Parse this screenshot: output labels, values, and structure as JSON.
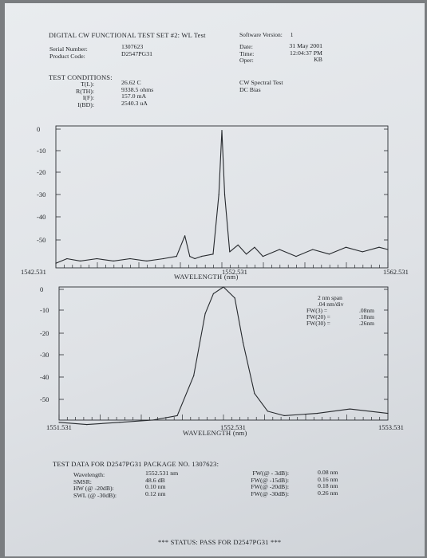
{
  "header": {
    "title": "DIGITAL CW FUNCTIONAL TEST SET #2:",
    "title_suffix": "WL Test",
    "software_label": "Software Version:",
    "software_value": "1",
    "serial_label": "Serial Number:",
    "serial_value": "1307623",
    "product_label": "Product Code:",
    "product_value": "D2547PG31",
    "date_label": "Date:",
    "date_value": "31 May 2001",
    "time_label": "Time:",
    "time_value": "12:04:37 PM",
    "oper_label": "Oper:",
    "oper_value": "KB"
  },
  "conditions": {
    "title": "TEST CONDITIONS:",
    "labels": [
      "T(L):",
      "R(TH):",
      "I(F):",
      "I(BD):"
    ],
    "values": [
      "26.62 C",
      "9338.5 ohms",
      "157.0 mA",
      "2540.3 uA"
    ],
    "mode_1": "CW Spectral Test",
    "mode_2": "DC Bias"
  },
  "chart_data": [
    {
      "type": "line",
      "xlabel": "WAVELENGTH (nm)",
      "x_ticks": [
        "1542.531",
        "1552.531",
        "1562.531"
      ],
      "xlim": [
        1542.531,
        1562.531
      ],
      "y_ticks": [
        "0",
        "-10",
        "-20",
        "-30",
        "-40",
        "-50"
      ],
      "ylim": [
        -62,
        0
      ],
      "series": [
        {
          "x": [
            1542.531,
            1543.2,
            1544.0,
            1545.0,
            1546.0,
            1547.0,
            1548.0,
            1549.0,
            1549.8,
            1550.3,
            1550.6,
            1550.9,
            1551.3,
            1552.0,
            1552.35,
            1552.531,
            1552.7,
            1553.0,
            1553.5,
            1554.0,
            1554.5,
            1555.0,
            1556.0,
            1557.0,
            1558.0,
            1559.0,
            1560.0,
            1561.0,
            1562.0,
            1562.531
          ],
          "y": [
            -60,
            -58,
            -59,
            -58,
            -59,
            -58,
            -59,
            -58,
            -57,
            -48,
            -57,
            -58,
            -57,
            -56,
            -30,
            -2,
            -30,
            -55,
            -52,
            -56,
            -53,
            -57,
            -54,
            -57,
            -54,
            -56,
            -53,
            -55,
            -53,
            -54
          ]
        }
      ]
    },
    {
      "type": "line",
      "xlabel": "WAVELENGTH (nm)",
      "x_ticks": [
        "1551.531",
        "1552.531",
        "1553.531"
      ],
      "xlim": [
        1551.531,
        1553.531
      ],
      "y_ticks": [
        "0",
        "-10",
        "-20",
        "-30",
        "-40",
        "-50"
      ],
      "ylim": [
        -60,
        0
      ],
      "annotations": [
        "2 nm span",
        ".04 nm/div"
      ],
      "fw_labels": [
        "FW(3) =",
        "FW(20) =",
        "FW(30) ="
      ],
      "fw_values": [
        ".08nm",
        ".18nm",
        ".26nm"
      ],
      "series": [
        {
          "x": [
            1551.531,
            1551.7,
            1551.9,
            1552.1,
            1552.25,
            1552.35,
            1552.42,
            1552.47,
            1552.531,
            1552.6,
            1552.65,
            1552.72,
            1552.8,
            1552.9,
            1553.1,
            1553.3,
            1553.531
          ],
          "y": [
            -61,
            -62,
            -61,
            -60,
            -58,
            -40,
            -12,
            -3,
            0,
            -5,
            -25,
            -48,
            -56,
            -58,
            -57,
            -55,
            -57
          ]
        }
      ]
    }
  ],
  "test_data": {
    "title": "TEST DATA FOR D2547PG31 PACKAGE NO. 1307623:",
    "labels_1": [
      "Wavelength:",
      "SMSR:",
      "HW (@ -20dB):",
      "SWL (@ -30dB):"
    ],
    "values_1": [
      "1552.531 nm",
      "48.6 dB",
      "0.10 nm",
      "0.12 nm"
    ],
    "labels_2": [
      "FW(@ - 3dB):",
      "FW(@ -15dB):",
      "FW(@ -20dB):",
      "FW(@ -30dB):"
    ],
    "values_2": [
      "0.08 nm",
      "0.16 nm",
      "0.18 nm",
      "0.26 nm"
    ]
  },
  "status": "*** STATUS: PASS FOR D2547PG31 ***"
}
